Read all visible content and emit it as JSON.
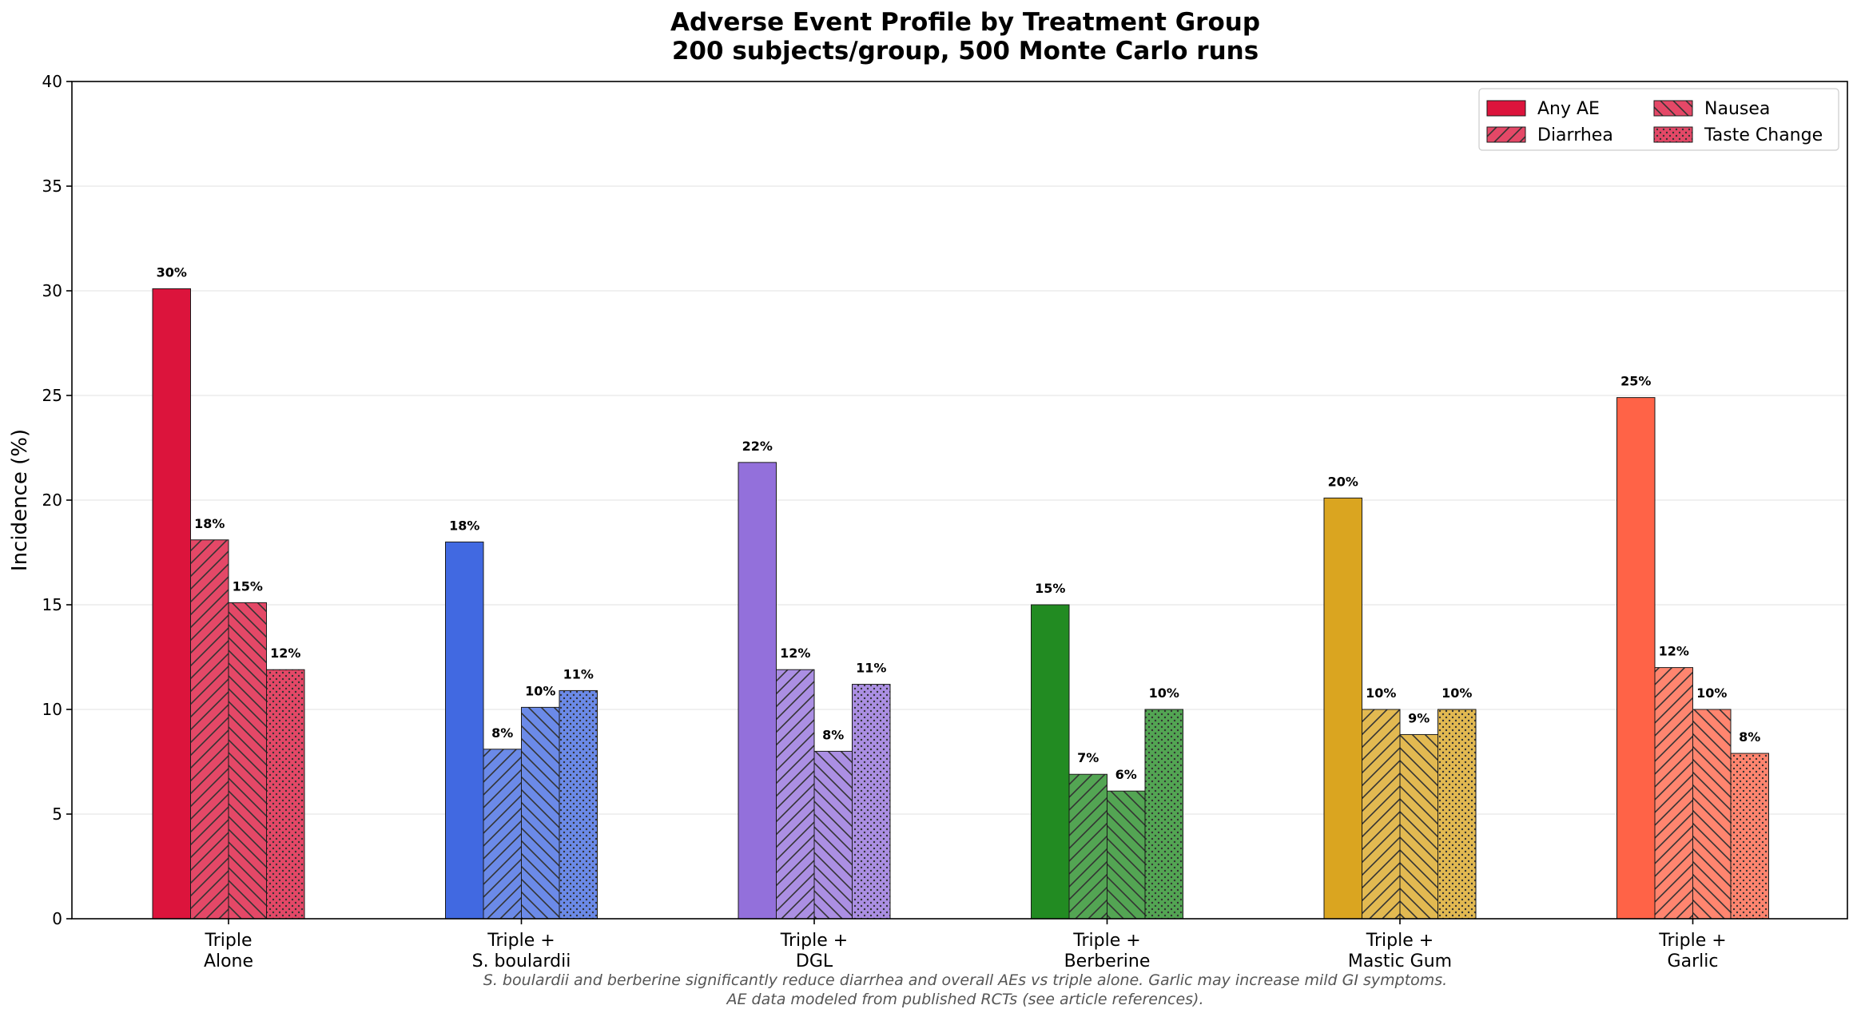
{
  "chart_data": {
    "type": "bar",
    "title": "Adverse Event Profile by Treatment Group",
    "subtitle": "200 subjects/group, 500 Monte Carlo runs",
    "xlabel": "",
    "ylabel": "Incidence (%)",
    "ylim": [
      0,
      40
    ],
    "yticks": [
      0,
      5,
      10,
      15,
      20,
      25,
      30,
      35,
      40
    ],
    "grid": "y",
    "legend_position": "top-right",
    "categories": [
      {
        "line1": "Triple",
        "line2": "Alone",
        "color": "#DC143C"
      },
      {
        "line1": "Triple +",
        "line2": "S. boulardii",
        "color": "#4169E1"
      },
      {
        "line1": "Triple +",
        "line2": "DGL",
        "color": "#9370DB"
      },
      {
        "line1": "Triple +",
        "line2": "Berberine",
        "color": "#228B22"
      },
      {
        "line1": "Triple +",
        "line2": "Mastic Gum",
        "color": "#DAA520"
      },
      {
        "line1": "Triple +",
        "line2": "Garlic",
        "color": "#FF6347"
      }
    ],
    "series": [
      {
        "name": "Any AE",
        "pattern": "solid",
        "values": [
          30.1,
          18.0,
          21.8,
          15.0,
          20.1,
          24.9
        ],
        "labels": [
          "30%",
          "18%",
          "22%",
          "15%",
          "20%",
          "25%"
        ]
      },
      {
        "name": "Diarrhea",
        "pattern": "diag-up",
        "values": [
          18.1,
          8.1,
          11.9,
          6.9,
          10.0,
          12.0
        ],
        "labels": [
          "18%",
          "8%",
          "12%",
          "7%",
          "10%",
          "12%"
        ]
      },
      {
        "name": "Nausea",
        "pattern": "diag-down",
        "values": [
          15.1,
          10.1,
          8.0,
          6.1,
          8.8,
          10.0
        ],
        "labels": [
          "15%",
          "10%",
          "8%",
          "6%",
          "9%",
          "10%"
        ]
      },
      {
        "name": "Taste Change",
        "pattern": "dots",
        "values": [
          11.9,
          10.9,
          11.2,
          10.0,
          10.0,
          7.9
        ],
        "labels": [
          "12%",
          "11%",
          "11%",
          "10%",
          "10%",
          "8%"
        ]
      }
    ],
    "legend_color": "#DC143C",
    "footnote_line1": "S. boulardii and berberine significantly reduce diarrhea and overall AEs vs triple alone.  Garlic may increase mild GI symptoms.",
    "footnote_line2": "AE data modeled from published RCTs (see article references)."
  }
}
